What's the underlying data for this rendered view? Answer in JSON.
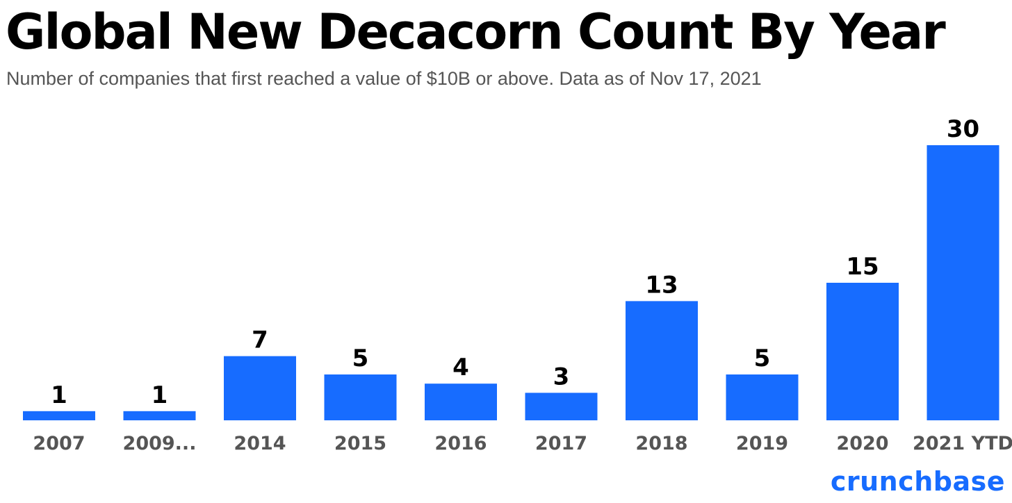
{
  "title": "Global New Decacorn Count By Year",
  "subtitle": "Number of companies that first reached a value of $10B or above. Data as of Nov 17, 2021",
  "brand": "crunchbase",
  "colors": {
    "bar": "#176cff",
    "value_label": "#000000",
    "tick_label": "#555555",
    "brand": "#176cff"
  },
  "chart_data": {
    "type": "bar",
    "categories": [
      "2007",
      "2009...",
      "2014",
      "2015",
      "2016",
      "2017",
      "2018",
      "2019",
      "2020",
      "2021 YTD"
    ],
    "values": [
      1,
      1,
      7,
      5,
      4,
      3,
      13,
      5,
      15,
      30
    ],
    "title": "Global New Decacorn Count By Year",
    "subtitle": "Number of companies that first reached a value of $10B or above. Data as of Nov 17, 2021",
    "xlabel": "",
    "ylabel": "",
    "ylim": [
      0,
      30
    ],
    "grid": false,
    "legend": "none",
    "data_labels": true
  }
}
